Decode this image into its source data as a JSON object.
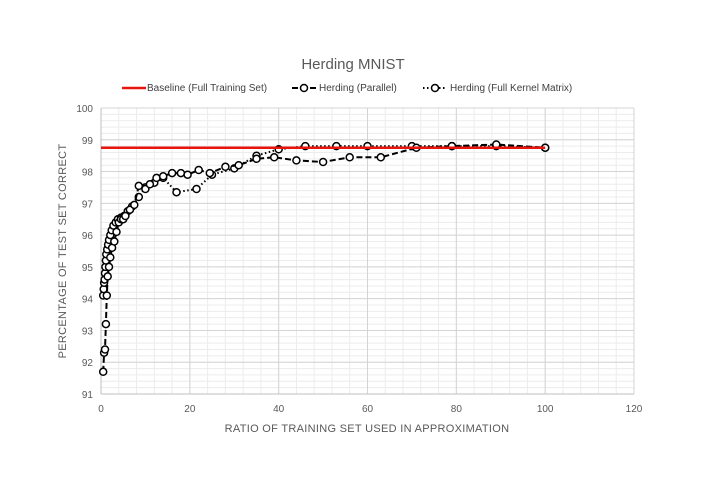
{
  "chart_data": {
    "type": "line",
    "title": "Herding MNIST",
    "xlabel": "RATIO OF TRAINING SET USED IN APPROXIMATION",
    "ylabel": "PERCENTAGE OF TEST SET CORRECT",
    "xlim": [
      0,
      120
    ],
    "ylim": [
      91,
      100
    ],
    "x_ticks": [
      "0",
      "20",
      "40",
      "60",
      "80",
      "100",
      "120"
    ],
    "y_ticks": [
      "91",
      "92",
      "93",
      "94",
      "95",
      "96",
      "97",
      "98",
      "99",
      "100"
    ],
    "grid": true,
    "legend_position": "top",
    "series": [
      {
        "name": "Baseline (Full Training Set)",
        "style": "solid",
        "color": "#e8140e",
        "markers": false,
        "x": [
          0,
          100
        ],
        "y": [
          98.75,
          98.75
        ]
      },
      {
        "name": "Herding (Parallel)",
        "style": "dashed",
        "color": "#000000",
        "markers": true,
        "x": [
          0.5,
          0.7,
          0.9,
          1.1,
          1.3,
          1.5,
          1.8,
          2.1,
          2.5,
          3.0,
          3.5,
          4.0,
          4.5,
          5.0,
          5.5,
          6.5,
          7.5,
          8.5,
          10,
          11,
          12.5,
          14,
          16,
          18,
          19.5,
          22,
          24.5,
          28,
          31,
          35,
          39,
          44,
          50,
          56,
          63,
          71,
          79,
          89,
          100
        ],
        "y": [
          91.7,
          92.3,
          92.4,
          93.2,
          94.1,
          94.7,
          95.0,
          95.3,
          95.6,
          95.8,
          96.1,
          96.4,
          96.5,
          96.5,
          96.6,
          96.8,
          96.95,
          97.55,
          97.45,
          97.6,
          97.8,
          97.85,
          97.95,
          97.95,
          97.9,
          98.05,
          97.95,
          98.15,
          98.2,
          98.4,
          98.45,
          98.35,
          98.3,
          98.45,
          98.45,
          98.75,
          98.8,
          98.85,
          98.75
        ]
      },
      {
        "name": "Herding (Full Kernel Matrix)",
        "style": "dotted",
        "color": "#000000",
        "markers": true,
        "x": [
          0.5,
          0.6,
          0.7,
          0.8,
          0.9,
          1.0,
          1.1,
          1.2,
          1.4,
          1.6,
          1.8,
          2.1,
          2.4,
          2.8,
          3.3,
          3.8,
          4.5,
          5.2,
          6.0,
          7.0,
          8.5,
          10,
          12,
          14,
          17,
          21.5,
          25,
          30,
          35,
          40,
          46,
          53,
          60,
          70,
          79,
          89,
          100
        ],
        "y": [
          94.1,
          94.3,
          94.5,
          94.6,
          94.8,
          95.0,
          95.2,
          95.4,
          95.55,
          95.7,
          95.85,
          96.0,
          96.15,
          96.3,
          96.4,
          96.5,
          96.55,
          96.6,
          96.75,
          96.9,
          97.2,
          97.5,
          97.65,
          97.8,
          97.35,
          97.45,
          97.9,
          98.1,
          98.5,
          98.7,
          98.8,
          98.8,
          98.8,
          98.8,
          98.8,
          98.8,
          98.75
        ]
      }
    ]
  }
}
